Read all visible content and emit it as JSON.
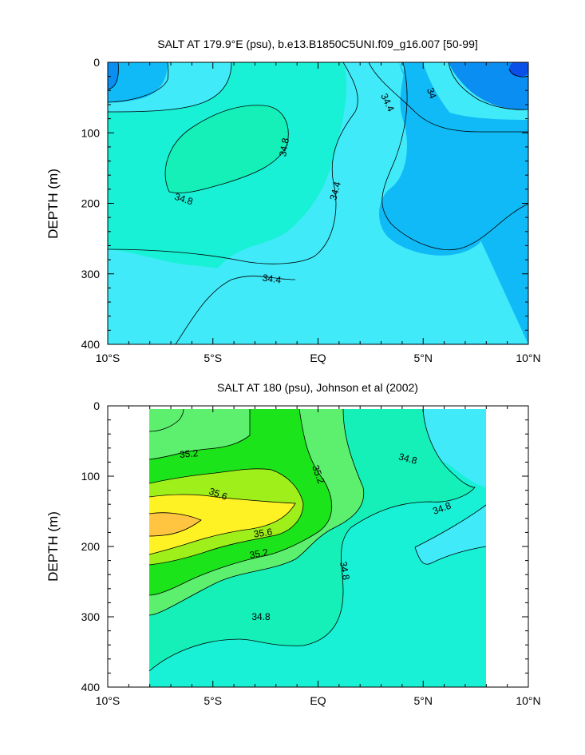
{
  "colors": {
    "c_lt_34_0": "#0a50e8",
    "c_34_0": "#0a8ef2",
    "c_34_2": "#10baf7",
    "c_34_4": "#40eaf9",
    "c_34_6": "#18f1d6",
    "c_34_8": "#14f0b8",
    "c_35_0": "#5cf06e",
    "c_35_2": "#1ce41a",
    "c_35_4": "#9ff01a",
    "c_35_6": "#fff224",
    "c_35_8": "#ffc440",
    "contour_line": "#000000"
  },
  "chart_data": [
    {
      "type": "contour",
      "title": "SALT AT 179.9°E (psu), b.e13.B1850C5UNI.f09_g16.007 [50-99]",
      "ylabel": "DEPTH (m)",
      "xlabel": "",
      "x_ticks": [
        "10°S",
        "5°S",
        "EQ",
        "5°N",
        "10°N"
      ],
      "x_tick_values": [
        -10,
        -5,
        0,
        5,
        10
      ],
      "y_ticks": [
        "0",
        "100",
        "200",
        "300",
        "400"
      ],
      "y_tick_values": [
        0,
        100,
        200,
        300,
        400
      ],
      "xlim": [
        -10,
        10
      ],
      "ylim": [
        400,
        0
      ],
      "contour_labels": [
        "34.8",
        "34.8",
        "34.4",
        "34.4",
        "34.4",
        "34"
      ]
    },
    {
      "type": "contour",
      "title": "SALT AT 180 (psu), Johnson et al (2002)",
      "ylabel": "DEPTH (m)",
      "xlabel": "",
      "x_ticks": [
        "10°S",
        "5°S",
        "EQ",
        "5°N",
        "10°N"
      ],
      "x_tick_values": [
        -10,
        -5,
        0,
        5,
        10
      ],
      "y_ticks": [
        "0",
        "100",
        "200",
        "300",
        "400"
      ],
      "y_tick_values": [
        0,
        100,
        200,
        300,
        400
      ],
      "xlim": [
        -10,
        10
      ],
      "ylim": [
        400,
        0
      ],
      "data_xrange": [
        -8,
        8
      ],
      "contour_labels": [
        "35.2",
        "35.6",
        "35.6",
        "35.2",
        "35.2",
        "34.8",
        "34.8",
        "34.8",
        "34.8"
      ]
    }
  ]
}
